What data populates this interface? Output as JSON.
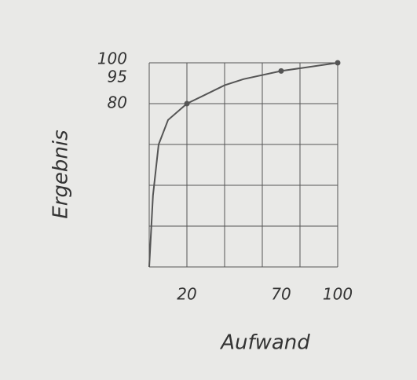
{
  "chart_data": {
    "type": "line",
    "x": [
      0,
      2,
      5,
      10,
      20,
      40,
      50,
      70,
      100
    ],
    "values": [
      0,
      35,
      60,
      72,
      80,
      89,
      92,
      96,
      100
    ],
    "points": {
      "x": [
        20,
        70,
        100
      ],
      "values": [
        80,
        96,
        100
      ]
    },
    "color": "#555555",
    "xlabel": "Aufwand",
    "ylabel": "Ergebnis",
    "xlim": [
      0,
      100
    ],
    "ylim": [
      0,
      100
    ],
    "xticks": [
      20,
      70,
      100
    ],
    "yticks": [
      80,
      95,
      100
    ],
    "xgrid": [
      0,
      20,
      40,
      60,
      80,
      100
    ],
    "ygrid": [
      0,
      20,
      40,
      60,
      80,
      100
    ]
  }
}
